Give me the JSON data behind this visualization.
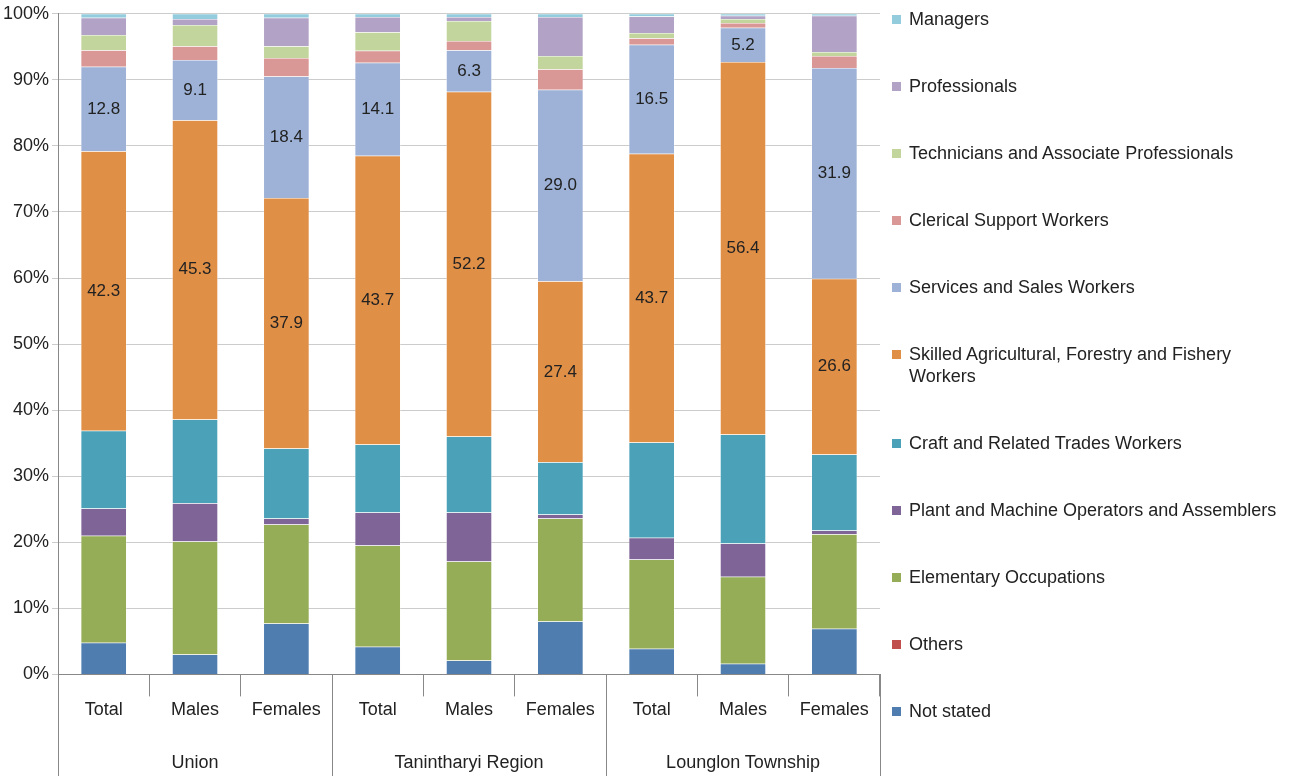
{
  "chart_data": {
    "type": "bar",
    "stacked": true,
    "categories": [
      "Total",
      "Males",
      "Females",
      "Total",
      "Males",
      "Females",
      "Total",
      "Males",
      "Females"
    ],
    "annotations": [
      "Union",
      "Tanintharyi Region",
      "Lounglon Township"
    ],
    "series": [
      {
        "name": "Not stated",
        "color": "#4f7db0",
        "values": [
          4.8,
          3.0,
          7.7,
          4.2,
          2.1,
          8.0,
          3.9,
          1.6,
          6.9
        ]
      },
      {
        "name": "Others",
        "color": "#c0504d",
        "values": [
          0,
          0,
          0,
          0,
          0,
          0,
          0,
          0,
          0
        ]
      },
      {
        "name": "Elementary Occupations",
        "color": "#95ad57",
        "values": [
          16.2,
          17.1,
          15.0,
          15.3,
          15.0,
          15.6,
          13.5,
          13.2,
          14.3
        ]
      },
      {
        "name": "Plant and Machine Operators and Assemblers",
        "color": "#7f6498",
        "values": [
          4.1,
          5.8,
          0.9,
          5.0,
          7.4,
          0.6,
          3.3,
          5.0,
          0.6
        ]
      },
      {
        "name": "Craft and Related Trades Workers",
        "color": "#4ba2b8",
        "values": [
          11.8,
          12.7,
          10.6,
          10.3,
          11.5,
          7.9,
          14.4,
          16.5,
          11.5
        ]
      },
      {
        "name": "Skilled Agricultural, Forestry and Fishery Workers",
        "color": "#e08f47",
        "values": [
          42.3,
          45.3,
          37.9,
          43.7,
          52.2,
          27.4,
          43.7,
          56.4,
          26.6
        ],
        "value_labels": [
          "42.3",
          "45.3",
          "37.9",
          "43.7",
          "52.2",
          "27.4",
          "43.7",
          "56.4",
          "26.6"
        ]
      },
      {
        "name": "Services and Sales Workers",
        "color": "#9db2d6",
        "values": [
          12.8,
          9.1,
          18.4,
          14.1,
          6.3,
          29.0,
          16.5,
          5.2,
          31.9
        ],
        "value_labels": [
          "12.8",
          "9.1",
          "18.4",
          "14.1",
          "6.3",
          "29.0",
          "16.5",
          "5.2",
          "31.9"
        ]
      },
      {
        "name": "Clerical Support Workers",
        "color": "#d99795",
        "values": [
          2.5,
          2.1,
          2.8,
          1.8,
          1.4,
          3.1,
          1.0,
          0.7,
          1.8
        ]
      },
      {
        "name": "Technicians and Associate Professionals",
        "color": "#c2d59c",
        "values": [
          2.3,
          3.2,
          1.8,
          2.8,
          3.0,
          2.0,
          0.8,
          0.6,
          0.6
        ]
      },
      {
        "name": "Professionals",
        "color": "#b2a3c6",
        "values": [
          2.6,
          0.9,
          4.3,
          2.3,
          0.6,
          5.9,
          2.5,
          0.5,
          5.5
        ]
      },
      {
        "name": "Managers",
        "color": "#93ccdc",
        "values": [
          0.6,
          0.8,
          0.6,
          0.5,
          0.5,
          0.5,
          0.4,
          0.3,
          0.3
        ]
      }
    ],
    "ylim": [
      0,
      100
    ],
    "yticks": [
      {
        "value": 0,
        "label": "0%"
      },
      {
        "value": 10,
        "label": "10%"
      },
      {
        "value": 20,
        "label": "20%"
      },
      {
        "value": 30,
        "label": "30%"
      },
      {
        "value": 40,
        "label": "40%"
      },
      {
        "value": 50,
        "label": "50%"
      },
      {
        "value": 60,
        "label": "60%"
      },
      {
        "value": 70,
        "label": "70%"
      },
      {
        "value": 80,
        "label": "80%"
      },
      {
        "value": 90,
        "label": "90%"
      },
      {
        "value": 100,
        "label": "100%"
      }
    ],
    "grid": "y",
    "legend": "right"
  }
}
